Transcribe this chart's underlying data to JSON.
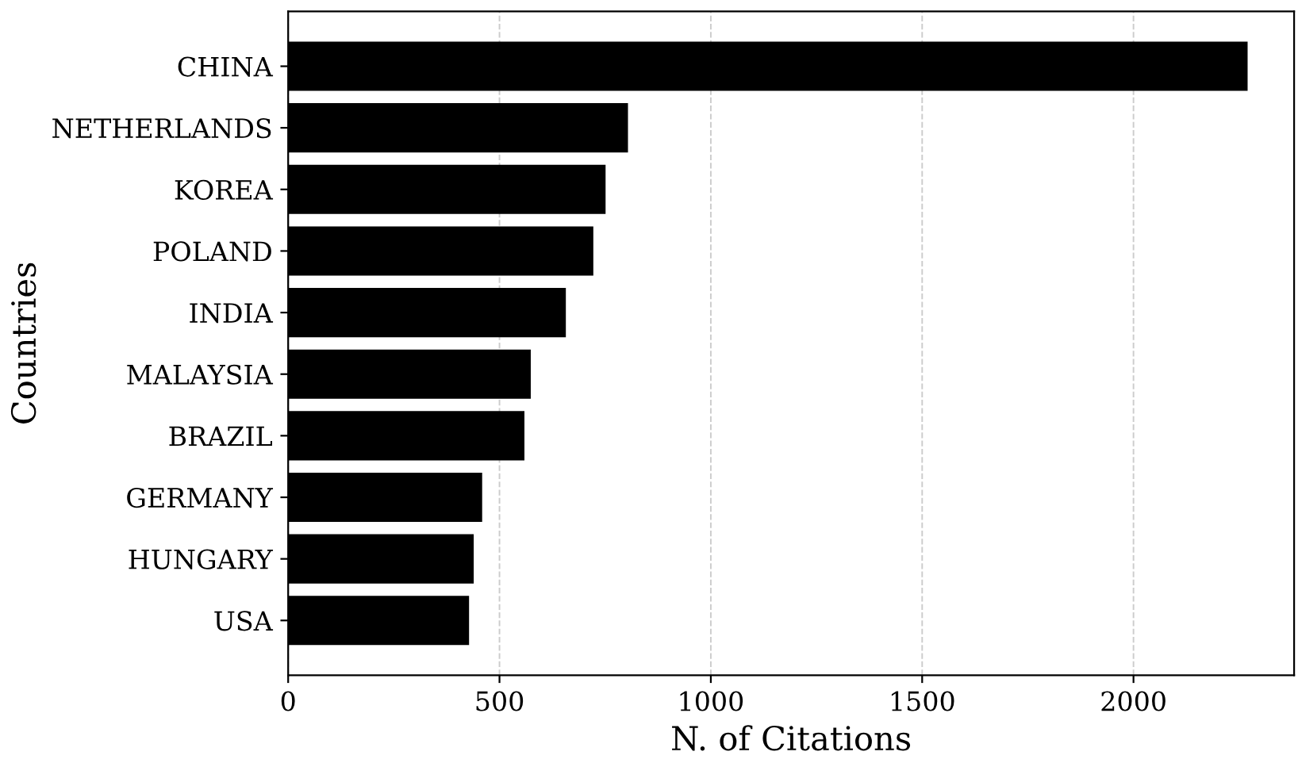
{
  "chart_data": {
    "type": "bar",
    "orientation": "horizontal",
    "xlabel": "N. of Citations",
    "ylabel": "Countries",
    "categories": [
      "CHINA",
      "NETHERLANDS",
      "KOREA",
      "POLAND",
      "INDIA",
      "MALAYSIA",
      "BRAZIL",
      "GERMANY",
      "HUNGARY",
      "USA"
    ],
    "values": [
      2270,
      804,
      751,
      722,
      657,
      574,
      559,
      459,
      439,
      428
    ],
    "color": "#000000",
    "xlim": [
      0,
      2380
    ],
    "xticks": [
      0,
      500,
      1000,
      1500,
      2000
    ],
    "grid": "x"
  }
}
